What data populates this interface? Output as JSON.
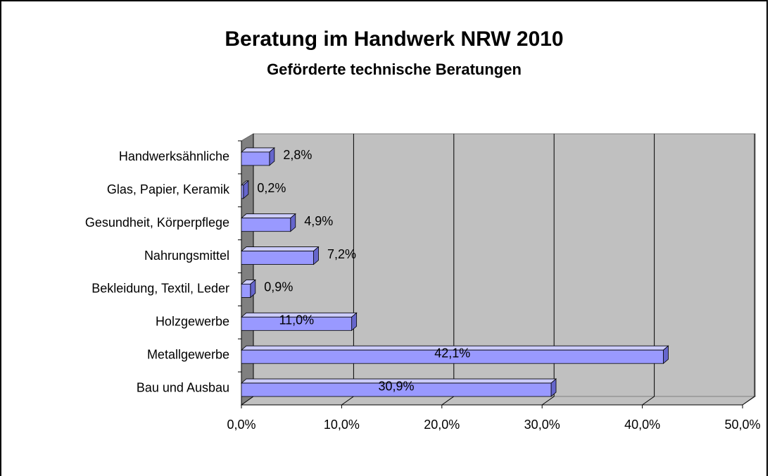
{
  "chart_data": {
    "type": "bar3d_horizontal",
    "title": "Beratung im Handwerk NRW 2010",
    "subtitle": "Geförderte technische Beratungen",
    "categories": [
      "Handwerksähnliche",
      "Glas, Papier, Keramik",
      "Gesundheit, Körperpflege",
      "Nahrungsmittel",
      "Bekleidung, Textil, Leder",
      "Holzgewerbe",
      "Metallgewerbe",
      "Bau und Ausbau"
    ],
    "values": [
      2.8,
      0.2,
      4.9,
      7.2,
      0.9,
      11.0,
      42.1,
      30.9
    ],
    "value_labels": [
      "2,8%",
      "0,2%",
      "4,9%",
      "7,2%",
      "0,9%",
      "11,0%",
      "42,1%",
      "30,9%"
    ],
    "color": "#9999ff",
    "xlim": [
      0,
      50
    ],
    "xticks": [
      {
        "value": 0,
        "label": "0,0%"
      },
      {
        "value": 10,
        "label": "10,0%"
      },
      {
        "value": 20,
        "label": "20,0%"
      },
      {
        "value": 30,
        "label": "30,0%"
      },
      {
        "value": 40,
        "label": "40,0%"
      },
      {
        "value": 50,
        "label": "50,0%"
      }
    ],
    "grid": true
  }
}
